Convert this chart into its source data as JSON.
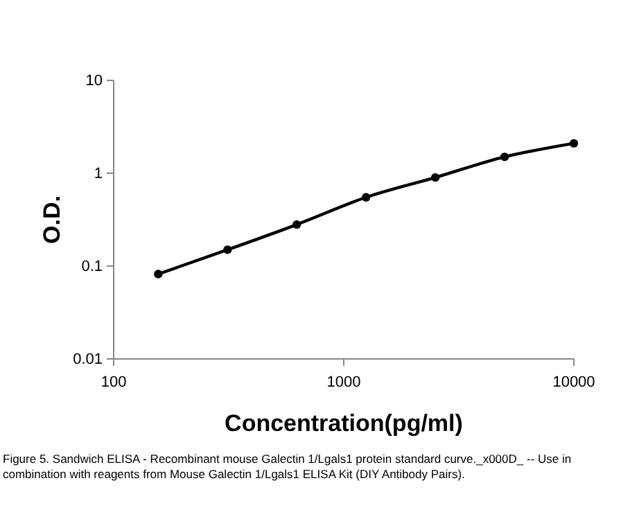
{
  "chart_data": {
    "type": "line",
    "xlabel": "Concentration(pg/ml)",
    "ylabel": "O.D.",
    "log": "xy",
    "grid": false,
    "marker": "circle",
    "line_style": "solid",
    "x": [
      156.25,
      312.5,
      625,
      1250,
      2500,
      5000,
      10000
    ],
    "series": [
      {
        "color": "#000000",
        "values": [
          0.082,
          0.15,
          0.28,
          0.55,
          0.9,
          1.5,
          2.1
        ]
      }
    ],
    "xlim": [
      100,
      10000
    ],
    "xticks": [
      100,
      1000,
      10000
    ],
    "ylim": [
      0.01,
      10
    ],
    "yticks": [
      0.01,
      0.1,
      1,
      10
    ],
    "annotations": [
      "Figure 5. Sandwich ELISA - Recombinant mouse Galectin 1/Lgals1 protein standard curve._x000D_ -- Use in combination with reagents from Mouse Galectin 1/Lgals1 ELISA Kit (DIY Antibody Pairs)."
    ]
  }
}
